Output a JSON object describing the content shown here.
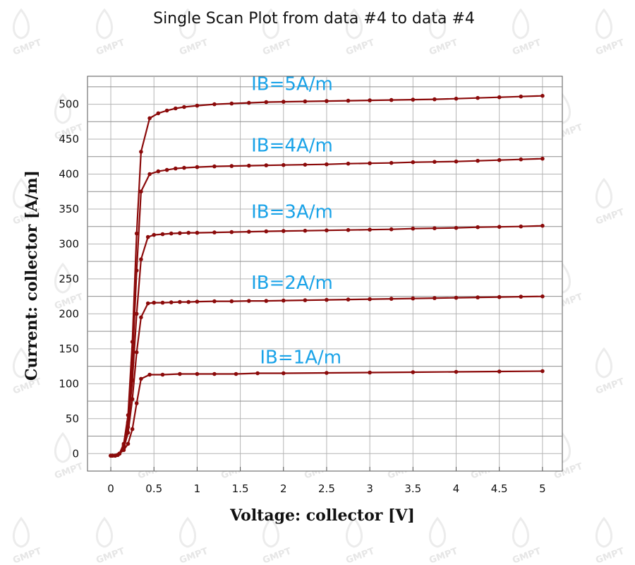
{
  "chart_data": {
    "type": "line",
    "title": "Single Scan Plot from data #4 to data #4",
    "xlabel": "Voltage: collector [V]",
    "ylabel": "Current: collector [A/m]",
    "xlim": [
      -0.27,
      5.23
    ],
    "ylim": [
      -25,
      540
    ],
    "xticks": [
      "0",
      "0.5",
      "1",
      "1.5",
      "2",
      "2.5",
      "3",
      "3.5",
      "4",
      "4.5",
      "5"
    ],
    "yticks": [
      "0",
      "50",
      "100",
      "150",
      "200",
      "250",
      "300",
      "350",
      "400",
      "450",
      "500"
    ],
    "grid": true,
    "line_color": "#8b0a0a",
    "series": [
      {
        "label": "IB=1A/m",
        "x": [
          0,
          0.02,
          0.05,
          0.08,
          0.1,
          0.15,
          0.2,
          0.25,
          0.3,
          0.35,
          0.45,
          0.6,
          0.8,
          1.0,
          1.2,
          1.45,
          1.7,
          2.0,
          2.5,
          3.0,
          3.5,
          4.0,
          4.5,
          5.0
        ],
        "y": [
          -3,
          -3,
          -3,
          -2,
          0,
          5,
          14,
          35,
          72,
          107,
          113,
          113,
          114,
          114,
          114,
          114,
          115,
          115,
          115.5,
          116,
          116.5,
          117,
          117.5,
          118
        ]
      },
      {
        "label": "IB=2A/m",
        "x": [
          0,
          0.02,
          0.05,
          0.08,
          0.1,
          0.15,
          0.2,
          0.25,
          0.3,
          0.35,
          0.43,
          0.5,
          0.6,
          0.7,
          0.8,
          0.9,
          1.0,
          1.2,
          1.4,
          1.6,
          1.8,
          2.0,
          2.25,
          2.5,
          2.75,
          3.0,
          3.25,
          3.5,
          3.75,
          4.0,
          4.25,
          4.5,
          4.75,
          5.0
        ],
        "y": [
          -3,
          -3,
          -3,
          -2,
          0,
          8,
          30,
          78,
          145,
          195,
          215,
          216,
          216,
          216.5,
          217,
          217,
          217.5,
          218,
          218,
          218.5,
          218.5,
          219,
          219.5,
          220,
          220.5,
          221,
          221.5,
          222,
          222.5,
          223,
          223.5,
          224,
          224.5,
          225
        ]
      },
      {
        "label": "IB=3A/m",
        "x": [
          0,
          0.02,
          0.05,
          0.08,
          0.1,
          0.15,
          0.2,
          0.25,
          0.3,
          0.35,
          0.43,
          0.5,
          0.6,
          0.7,
          0.8,
          0.9,
          1.0,
          1.2,
          1.4,
          1.6,
          1.8,
          2.0,
          2.25,
          2.5,
          2.75,
          3.0,
          3.25,
          3.5,
          3.75,
          4.0,
          4.25,
          4.5,
          4.75,
          5.0
        ],
        "y": [
          -3,
          -3,
          -3,
          -2,
          0,
          10,
          38,
          105,
          200,
          278,
          310,
          313,
          314,
          315,
          315.5,
          316,
          316,
          316.5,
          317,
          317.5,
          318,
          318.5,
          319,
          319.5,
          320,
          320.5,
          321,
          322,
          322.5,
          323,
          324,
          324.5,
          325,
          326
        ]
      },
      {
        "label": "IB=4A/m",
        "x": [
          0,
          0.02,
          0.05,
          0.08,
          0.1,
          0.15,
          0.2,
          0.25,
          0.3,
          0.35,
          0.45,
          0.55,
          0.65,
          0.75,
          0.85,
          1.0,
          1.2,
          1.4,
          1.6,
          1.8,
          2.0,
          2.25,
          2.5,
          2.75,
          3.0,
          3.25,
          3.5,
          3.75,
          4.0,
          4.25,
          4.5,
          4.75,
          5.0
        ],
        "y": [
          -3,
          -3,
          -3,
          -2,
          0,
          12,
          45,
          130,
          262,
          375,
          400,
          404,
          406,
          408,
          409,
          410,
          411,
          411.5,
          412,
          412.5,
          413,
          413.5,
          414,
          415,
          415.5,
          416,
          417,
          417.5,
          418,
          419,
          420,
          421,
          422
        ]
      },
      {
        "label": "IB=5A/m",
        "x": [
          0,
          0.02,
          0.05,
          0.08,
          0.1,
          0.15,
          0.2,
          0.25,
          0.3,
          0.35,
          0.45,
          0.55,
          0.65,
          0.75,
          0.85,
          1.0,
          1.2,
          1.4,
          1.6,
          1.8,
          2.0,
          2.25,
          2.5,
          2.75,
          3.0,
          3.25,
          3.5,
          3.75,
          4.0,
          4.25,
          4.5,
          4.75,
          5.0
        ],
        "y": [
          -3,
          -3,
          -3,
          -2,
          0,
          14,
          55,
          160,
          315,
          432,
          480,
          487,
          491,
          494,
          496,
          498,
          500,
          501,
          502,
          503,
          503.5,
          504,
          504.5,
          505,
          505.5,
          506,
          506.5,
          507,
          508,
          509,
          510,
          511,
          512
        ]
      }
    ],
    "annotations": [
      "IB=5A/m",
      "IB=4A/m",
      "IB=3A/m",
      "IB=2A/m",
      "IB=1A/m"
    ],
    "watermark": "GMPT"
  }
}
